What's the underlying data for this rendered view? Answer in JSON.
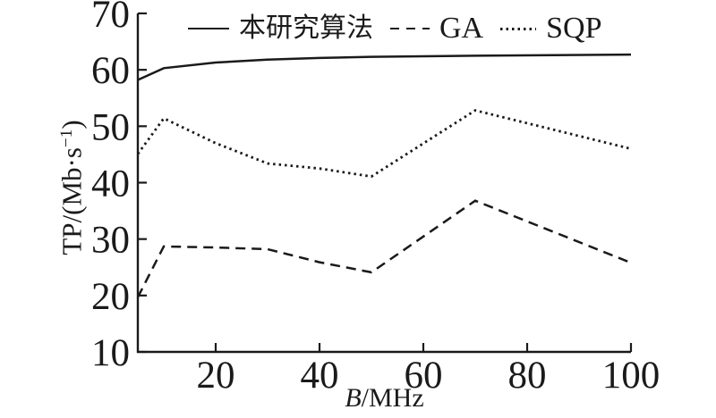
{
  "colors": {
    "ink": "#1a1a1a",
    "background": "#ffffff"
  },
  "axes": {
    "xlabel_italic": "B",
    "xlabel_rest": "/MHz",
    "ylabel_pre": "TP/(Mb·s",
    "ylabel_sup": "−1",
    "ylabel_post": ")"
  },
  "chart_data": {
    "type": "line",
    "title": "",
    "xlabel": "B/MHz",
    "ylabel": "TP/(Mb·s⁻¹)",
    "xlim": [
      5,
      100
    ],
    "ylim": [
      10,
      70
    ],
    "xticks": [
      20,
      40,
      60,
      80,
      100
    ],
    "yticks": [
      10,
      20,
      30,
      40,
      50,
      60,
      70
    ],
    "grid": false,
    "legend_position": "top-center",
    "x": [
      5,
      10,
      20,
      30,
      40,
      50,
      70,
      100
    ],
    "series": [
      {
        "key": "proposed",
        "name": "本研究算法",
        "line_style": "solid",
        "values": [
          58.2,
          60.3,
          61.3,
          61.8,
          62.1,
          62.3,
          62.5,
          62.7
        ]
      },
      {
        "key": "ga",
        "name": "GA",
        "line_style": "dashed",
        "values": [
          19.7,
          28.7,
          28.5,
          28.2,
          25.9,
          24.1,
          36.8,
          25.8
        ]
      },
      {
        "key": "sqp",
        "name": "SQP",
        "line_style": "dotted",
        "values": [
          45.1,
          51.4,
          47.0,
          43.4,
          42.5,
          41.1,
          52.8,
          46.0
        ]
      }
    ]
  }
}
